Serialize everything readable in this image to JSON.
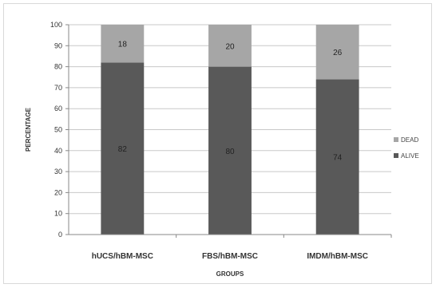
{
  "chart_data": {
    "type": "bar",
    "stacked": true,
    "percent": true,
    "categories": [
      "hUCS/hBM-MSC",
      "FBS/hBM-MSC",
      "IMDM/hBM-MSC"
    ],
    "series": [
      {
        "name": "ALIVE",
        "values": [
          82,
          80,
          74
        ],
        "color": "#595959"
      },
      {
        "name": "DEAD",
        "values": [
          18,
          20,
          26
        ],
        "color": "#a6a6a6"
      }
    ],
    "yticks": [
      0,
      10,
      20,
      30,
      40,
      50,
      60,
      70,
      80,
      90,
      100
    ],
    "ylim": [
      0,
      100
    ],
    "xlabel": "GROUPS",
    "ylabel": "PERCENTAGE",
    "grid": true,
    "legend": {
      "position": "right",
      "order": [
        "DEAD",
        "ALIVE"
      ]
    }
  }
}
